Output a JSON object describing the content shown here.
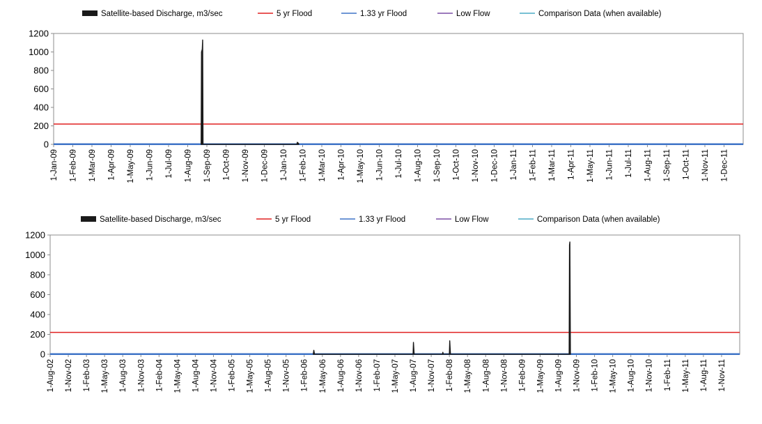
{
  "legend": [
    {
      "label": "Satellite-based Discharge, m3/sec",
      "color": "#1a1a1a",
      "kind": "bar"
    },
    {
      "label": "5 yr Flood",
      "color": "#e02020",
      "kind": "line"
    },
    {
      "label": "1.33 yr Flood",
      "color": "#3f74c7",
      "kind": "line"
    },
    {
      "label": "Low Flow",
      "color": "#7b4fa6",
      "kind": "line"
    },
    {
      "label": "Comparison Data (when available)",
      "color": "#4bacc6",
      "kind": "line"
    }
  ],
  "chart_data": [
    {
      "type": "area",
      "ylim": [
        0,
        1200
      ],
      "yticks": [
        0,
        200,
        400,
        600,
        800,
        1000,
        1200
      ],
      "grid": false,
      "legend_position": "top",
      "categories": [
        "1-Jan-09",
        "1-Feb-09",
        "1-Mar-09",
        "1-Apr-09",
        "1-May-09",
        "1-Jun-09",
        "1-Jul-09",
        "1-Aug-09",
        "1-Sep-09",
        "1-Oct-09",
        "1-Nov-09",
        "1-Dec-09",
        "1-Jan-10",
        "1-Feb-10",
        "1-Mar-10",
        "1-Apr-10",
        "1-May-10",
        "1-Jun-10",
        "1-Jul-10",
        "1-Aug-10",
        "1-Sep-10",
        "1-Oct-10",
        "1-Nov-10",
        "1-Dec-10",
        "1-Jan-11",
        "1-Feb-11",
        "1-Mar-11",
        "1-Apr-11",
        "1-May-11",
        "1-Jun-11",
        "1-Jul-11",
        "1-Aug-11",
        "1-Sep-11",
        "1-Oct-11",
        "1-Nov-11",
        "1-Dec-11"
      ],
      "series": [
        {
          "name": "Satellite-based Discharge, m3/sec",
          "points": [
            [
              7.7,
              0
            ],
            [
              7.72,
              1000
            ],
            [
              7.76,
              1030
            ],
            [
              7.78,
              1130
            ],
            [
              7.8,
              0
            ],
            [
              12.7,
              0
            ],
            [
              12.72,
              22
            ],
            [
              12.78,
              12
            ],
            [
              12.8,
              0
            ]
          ]
        },
        {
          "name": "5 yr Flood",
          "constant": 220
        },
        {
          "name": "1.33 yr Flood",
          "constant": 2
        },
        {
          "name": "Low Flow",
          "constant": 0
        },
        {
          "name": "Comparison Data (when available)",
          "constant": 1
        }
      ]
    },
    {
      "type": "area",
      "ylim": [
        0,
        1200
      ],
      "yticks": [
        0,
        200,
        400,
        600,
        800,
        1000,
        1200
      ],
      "grid": false,
      "legend_position": "top",
      "categories": [
        "1-Aug-02",
        "1-Nov-02",
        "1-Feb-03",
        "1-May-03",
        "1-Aug-03",
        "1-Nov-03",
        "1-Feb-04",
        "1-May-04",
        "1-Aug-04",
        "1-Nov-04",
        "1-Feb-05",
        "1-May-05",
        "1-Aug-05",
        "1-Nov-05",
        "1-Feb-06",
        "1-May-06",
        "1-Aug-06",
        "1-Nov-06",
        "1-Feb-07",
        "1-May-07",
        "1-Aug-07",
        "1-Nov-07",
        "1-Feb-08",
        "1-May-08",
        "1-Aug-08",
        "1-Nov-08",
        "1-Feb-09",
        "1-May-09",
        "1-Aug-09",
        "1-Nov-09",
        "1-Feb-10",
        "1-May-10",
        "1-Aug-10",
        "1-Nov-10",
        "1-Feb-11",
        "1-May-11",
        "1-Aug-11",
        "1-Nov-11"
      ],
      "series": [
        {
          "name": "Satellite-based Discharge, m3/sec",
          "points": [
            [
              14.5,
              0
            ],
            [
              14.53,
              40
            ],
            [
              14.57,
              0
            ],
            [
              20.0,
              0
            ],
            [
              20.02,
              120
            ],
            [
              20.06,
              0
            ],
            [
              21.62,
              0
            ],
            [
              21.64,
              20
            ],
            [
              21.67,
              0
            ],
            [
              22.0,
              0
            ],
            [
              22.02,
              135
            ],
            [
              22.06,
              0
            ],
            [
              28.6,
              0
            ],
            [
              28.62,
              1100
            ],
            [
              28.64,
              1130
            ],
            [
              28.67,
              0
            ]
          ]
        },
        {
          "name": "5 yr Flood",
          "constant": 220
        },
        {
          "name": "1.33 yr Flood",
          "constant": 2
        },
        {
          "name": "Low Flow",
          "constant": 0
        },
        {
          "name": "Comparison Data (when available)",
          "constant": 1
        }
      ]
    }
  ]
}
